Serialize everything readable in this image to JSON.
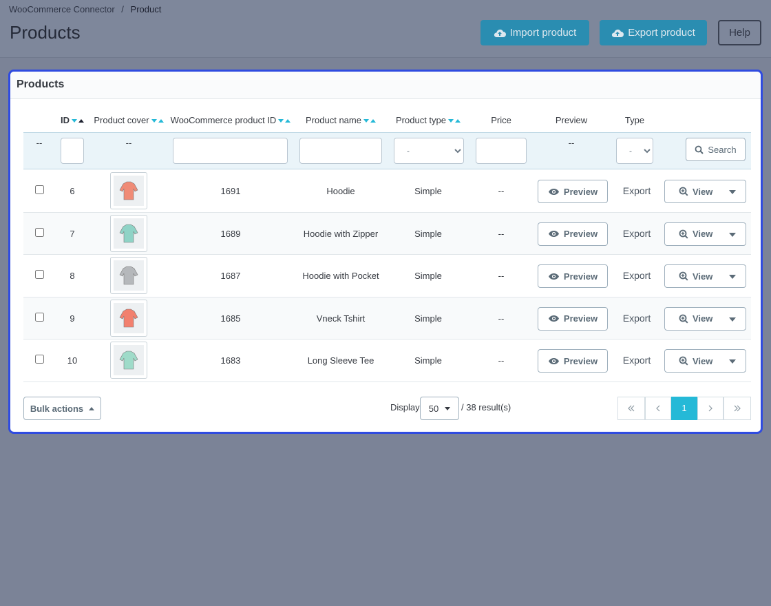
{
  "breadcrumb": [
    "WooCommerce Connector",
    "Product"
  ],
  "header": {
    "title": "Products",
    "buttons": [
      "Import product",
      "Export product",
      "Help"
    ]
  },
  "panel": {
    "title": "Products",
    "columns": [
      "ID",
      "Product cover",
      "WooCommerce product ID",
      "Product name",
      "Product type",
      "Price",
      "Preview",
      "Type"
    ],
    "filters": {
      "empty": "--",
      "select": "-",
      "search": "Search"
    },
    "rows": [
      {
        "id": 6,
        "woo_id": 1691,
        "name": "Hoodie",
        "type": "Simple",
        "price": "--",
        "preview": "Preview",
        "export": "Export",
        "view": "View"
      },
      {
        "id": 7,
        "woo_id": 1689,
        "name": "Hoodie with Zipper",
        "type": "Simple",
        "price": "--",
        "preview": "Preview",
        "export": "Export",
        "view": "View"
      },
      {
        "id": 8,
        "woo_id": 1687,
        "name": "Hoodie with Pocket",
        "type": "Simple",
        "price": "--",
        "preview": "Preview",
        "export": "Export",
        "view": "View"
      },
      {
        "id": 9,
        "woo_id": 1685,
        "name": "Vneck Tshirt",
        "type": "Simple",
        "price": "--",
        "preview": "Preview",
        "export": "Export",
        "view": "View"
      },
      {
        "id": 10,
        "woo_id": 1683,
        "name": "Long Sleeve Tee",
        "type": "Simple",
        "price": "--",
        "preview": "Preview",
        "export": "Export",
        "view": "View"
      }
    ]
  },
  "footer": {
    "bulk": "Bulk actions",
    "display": "Display",
    "per_page": 50,
    "results": "/ 38 result(s)",
    "page": 1
  }
}
